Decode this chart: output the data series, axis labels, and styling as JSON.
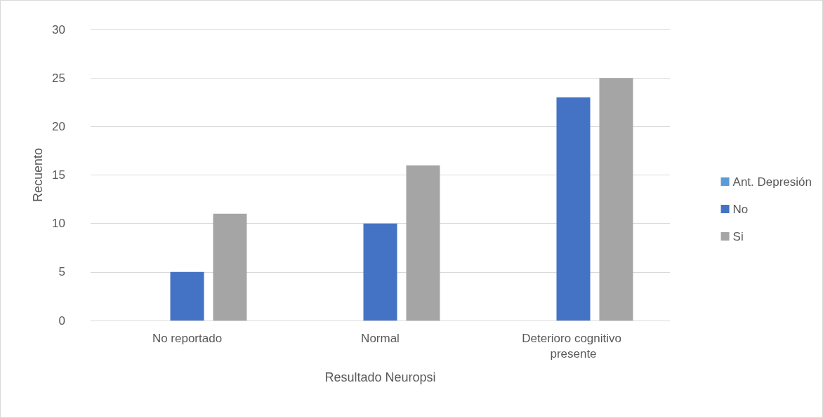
{
  "chart_data": {
    "type": "bar",
    "xlabel": "Resultado Neuropsi",
    "ylabel": "Recuento",
    "categories": [
      "No reportado",
      "Normal",
      "Deterioro cognitivo presente"
    ],
    "series": [
      {
        "name": "Ant. Depresión",
        "color": "#5b9bd5",
        "values": [
          null,
          null,
          null
        ]
      },
      {
        "name": "No",
        "color": "#4472c4",
        "values": [
          5,
          10,
          23
        ]
      },
      {
        "name": "Si",
        "color": "#a5a5a5",
        "values": [
          11,
          16,
          25
        ]
      }
    ],
    "ylim": [
      0,
      30
    ],
    "yticks": [
      0,
      5,
      10,
      15,
      20,
      25,
      30
    ],
    "grid": "y",
    "legend": "right"
  }
}
